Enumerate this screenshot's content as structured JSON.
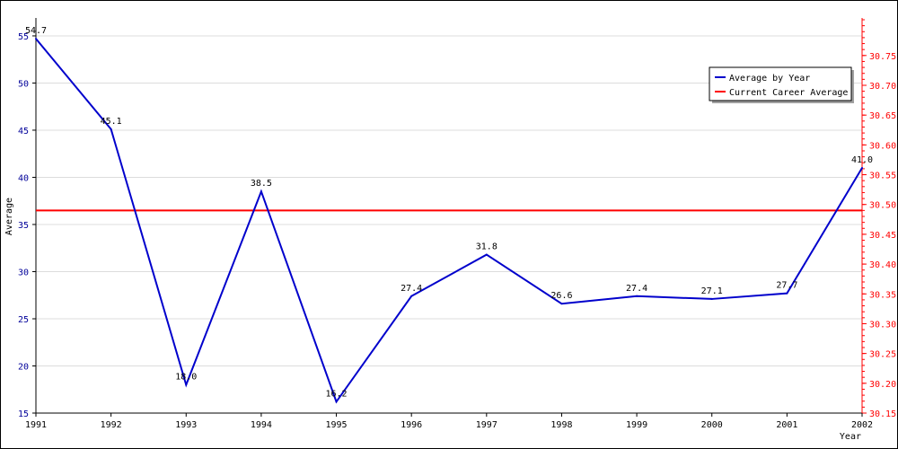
{
  "chart_data": {
    "type": "line",
    "xlabel": "Year",
    "ylabel": "Average",
    "x": [
      "1991",
      "1992",
      "1993",
      "1994",
      "1995",
      "1996",
      "1997",
      "1998",
      "1999",
      "2000",
      "2001",
      "2002"
    ],
    "series": [
      {
        "name": "Average by Year",
        "color": "#0000cc",
        "axis": "left",
        "values": [
          54.7,
          45.1,
          18.0,
          38.5,
          16.2,
          27.4,
          31.8,
          26.6,
          27.4,
          27.1,
          27.7,
          41.0
        ],
        "labels": [
          "54.7",
          "45.1",
          "18.0",
          "38.5",
          "16.2",
          "27.4",
          "31.8",
          "26.6",
          "27.4",
          "27.1",
          "27.7",
          "41.0"
        ]
      },
      {
        "name": "Current Career Average",
        "color": "#ff0000",
        "axis": "right",
        "value": 30.49
      }
    ],
    "y_left": {
      "range": [
        15,
        56.9
      ],
      "ticks": [
        15,
        20,
        25,
        30,
        35,
        40,
        45,
        50,
        55
      ],
      "tick_labels": [
        "15",
        "20",
        "25",
        "30",
        "35",
        "40",
        "45",
        "50",
        "55"
      ],
      "color": "#000099"
    },
    "y_right": {
      "range": [
        30.15,
        30.813
      ],
      "ticks": [
        30.15,
        30.2,
        30.25,
        30.3,
        30.35,
        30.4,
        30.45,
        30.5,
        30.55,
        30.6,
        30.65,
        30.7,
        30.75
      ],
      "tick_labels": [
        "30.15",
        "30.20",
        "30.25",
        "30.30",
        "30.35",
        "30.40",
        "30.45",
        "30.50",
        "30.55",
        "30.60",
        "30.65",
        "30.70",
        "30.75"
      ],
      "color": "#ff0000"
    },
    "grid": true,
    "legend_position": "top-right"
  }
}
